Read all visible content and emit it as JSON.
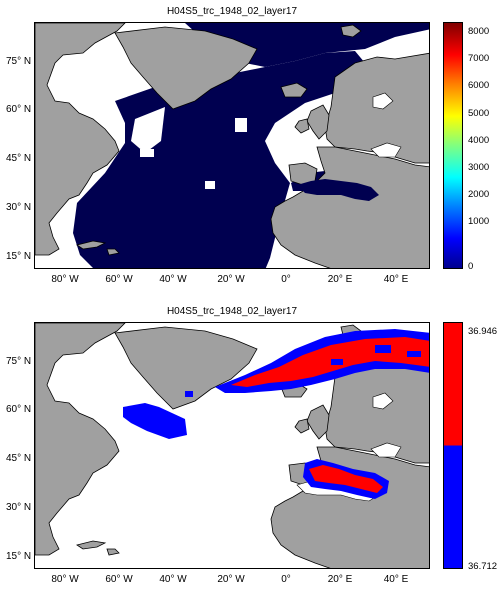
{
  "maps": [
    {
      "title": "H04S5_trc_1948_02_layer17",
      "y_ticks": [
        "75° N",
        "60° N",
        "45° N",
        "30° N",
        "15° N"
      ],
      "x_ticks": [
        "80° W",
        "60° W",
        "40° W",
        "20° W",
        "0°",
        "20° E",
        "40° E"
      ],
      "colorbar": {
        "type": "jet",
        "ticks": [
          "8000",
          "7000",
          "6000",
          "5000",
          "4000",
          "3000",
          "2000",
          "1000",
          "0"
        ]
      },
      "field_color": "#000050"
    },
    {
      "title": "H04S5_trc_1948_02_layer17",
      "y_ticks": [
        "75° N",
        "60° N",
        "45° N",
        "30° N",
        "15° N"
      ],
      "x_ticks": [
        "80° W",
        "60° W",
        "40° W",
        "20° W",
        "0°",
        "20° E",
        "40° E"
      ],
      "colorbar": {
        "type": "two-color",
        "max_label": "36.946",
        "min_label": "36.712",
        "colors": [
          "#ff0000",
          "#0000ff"
        ]
      }
    }
  ],
  "colors": {
    "land": "#a0a0a0",
    "ocean_blank": "#ffffff",
    "coast": "#000000"
  }
}
